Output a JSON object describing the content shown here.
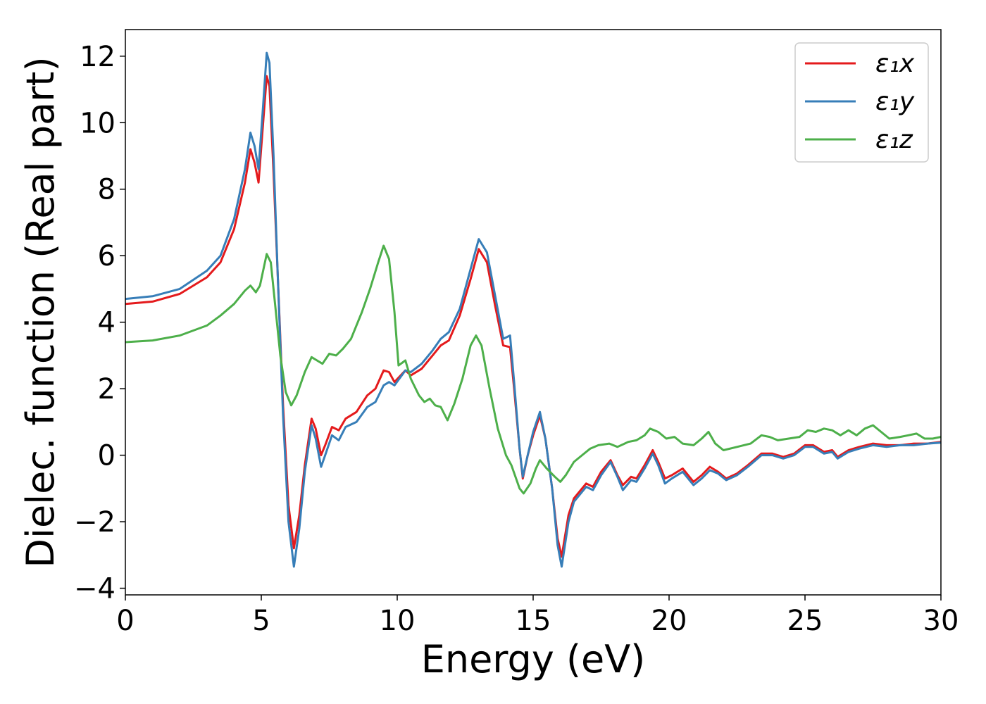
{
  "chart_data": {
    "type": "line",
    "xlabel": "Energy (eV)",
    "ylabel": "Dielec. function (Real part)",
    "xlim": [
      0,
      30
    ],
    "ylim": [
      -4.2,
      12.8
    ],
    "x_ticks": [
      0,
      5,
      10,
      15,
      20,
      25,
      30
    ],
    "y_ticks": [
      -4,
      -2,
      0,
      2,
      4,
      6,
      8,
      10,
      12
    ],
    "y_tick_labels": [
      "−4",
      "−2",
      "0",
      "2",
      "4",
      "6",
      "8",
      "10",
      "12"
    ],
    "grid": false,
    "legend_position": "top-right",
    "series": [
      {
        "name": "ε₁x",
        "color": "#e41a1c",
        "points": [
          [
            0,
            4.55
          ],
          [
            1,
            4.62
          ],
          [
            2,
            4.85
          ],
          [
            3,
            5.35
          ],
          [
            3.5,
            5.8
          ],
          [
            4,
            6.8
          ],
          [
            4.4,
            8.2
          ],
          [
            4.6,
            9.2
          ],
          [
            4.75,
            8.8
          ],
          [
            4.9,
            8.2
          ],
          [
            5.05,
            9.8
          ],
          [
            5.2,
            11.4
          ],
          [
            5.3,
            11.1
          ],
          [
            5.45,
            8.5
          ],
          [
            5.6,
            5.5
          ],
          [
            5.8,
            1.5
          ],
          [
            6.0,
            -1.5
          ],
          [
            6.2,
            -2.8
          ],
          [
            6.4,
            -1.8
          ],
          [
            6.6,
            -0.3
          ],
          [
            6.85,
            1.1
          ],
          [
            7.0,
            0.8
          ],
          [
            7.2,
            0.0
          ],
          [
            7.35,
            0.3
          ],
          [
            7.6,
            0.85
          ],
          [
            7.85,
            0.75
          ],
          [
            8.1,
            1.1
          ],
          [
            8.5,
            1.3
          ],
          [
            8.9,
            1.8
          ],
          [
            9.2,
            2.0
          ],
          [
            9.5,
            2.55
          ],
          [
            9.7,
            2.5
          ],
          [
            9.9,
            2.2
          ],
          [
            10.3,
            2.55
          ],
          [
            10.5,
            2.4
          ],
          [
            10.9,
            2.6
          ],
          [
            11.3,
            3.0
          ],
          [
            11.6,
            3.3
          ],
          [
            11.9,
            3.45
          ],
          [
            12.3,
            4.2
          ],
          [
            12.7,
            5.3
          ],
          [
            13.0,
            6.2
          ],
          [
            13.3,
            5.8
          ],
          [
            13.6,
            4.5
          ],
          [
            13.9,
            3.3
          ],
          [
            14.15,
            3.25
          ],
          [
            14.3,
            2.0
          ],
          [
            14.5,
            0.2
          ],
          [
            14.62,
            -0.7
          ],
          [
            14.8,
            0.0
          ],
          [
            15.0,
            0.6
          ],
          [
            15.25,
            1.2
          ],
          [
            15.45,
            0.5
          ],
          [
            15.7,
            -1.0
          ],
          [
            15.9,
            -2.5
          ],
          [
            16.05,
            -3.05
          ],
          [
            16.3,
            -1.8
          ],
          [
            16.5,
            -1.3
          ],
          [
            16.8,
            -1.0
          ],
          [
            16.95,
            -0.85
          ],
          [
            17.2,
            -0.95
          ],
          [
            17.5,
            -0.5
          ],
          [
            17.85,
            -0.15
          ],
          [
            18.1,
            -0.6
          ],
          [
            18.3,
            -0.9
          ],
          [
            18.6,
            -0.65
          ],
          [
            18.8,
            -0.7
          ],
          [
            19.1,
            -0.3
          ],
          [
            19.4,
            0.15
          ],
          [
            19.6,
            -0.2
          ],
          [
            19.85,
            -0.7
          ],
          [
            20.1,
            -0.6
          ],
          [
            20.5,
            -0.4
          ],
          [
            20.9,
            -0.8
          ],
          [
            21.2,
            -0.6
          ],
          [
            21.5,
            -0.35
          ],
          [
            21.8,
            -0.5
          ],
          [
            22.1,
            -0.7
          ],
          [
            22.5,
            -0.55
          ],
          [
            22.9,
            -0.3
          ],
          [
            23.4,
            0.05
          ],
          [
            23.8,
            0.05
          ],
          [
            24.2,
            -0.05
          ],
          [
            24.6,
            0.05
          ],
          [
            25.0,
            0.3
          ],
          [
            25.3,
            0.3
          ],
          [
            25.7,
            0.1
          ],
          [
            26.0,
            0.15
          ],
          [
            26.2,
            -0.05
          ],
          [
            26.6,
            0.15
          ],
          [
            27.0,
            0.25
          ],
          [
            27.5,
            0.35
          ],
          [
            28.0,
            0.3
          ],
          [
            28.5,
            0.3
          ],
          [
            29.0,
            0.35
          ],
          [
            29.5,
            0.35
          ],
          [
            30.0,
            0.4
          ]
        ]
      },
      {
        "name": "ε₁y",
        "color": "#377eb8",
        "points": [
          [
            0,
            4.7
          ],
          [
            1,
            4.78
          ],
          [
            2,
            5.0
          ],
          [
            3,
            5.55
          ],
          [
            3.5,
            6.0
          ],
          [
            4,
            7.1
          ],
          [
            4.4,
            8.6
          ],
          [
            4.6,
            9.7
          ],
          [
            4.75,
            9.3
          ],
          [
            4.9,
            8.6
          ],
          [
            5.05,
            10.3
          ],
          [
            5.2,
            12.1
          ],
          [
            5.3,
            11.8
          ],
          [
            5.45,
            9.0
          ],
          [
            5.6,
            5.5
          ],
          [
            5.8,
            1.2
          ],
          [
            6.0,
            -2.0
          ],
          [
            6.2,
            -3.35
          ],
          [
            6.4,
            -2.2
          ],
          [
            6.6,
            -0.5
          ],
          [
            6.85,
            0.9
          ],
          [
            7.0,
            0.5
          ],
          [
            7.2,
            -0.35
          ],
          [
            7.35,
            0.0
          ],
          [
            7.6,
            0.6
          ],
          [
            7.85,
            0.45
          ],
          [
            8.1,
            0.85
          ],
          [
            8.5,
            1.0
          ],
          [
            8.9,
            1.45
          ],
          [
            9.2,
            1.6
          ],
          [
            9.5,
            2.1
          ],
          [
            9.7,
            2.2
          ],
          [
            9.9,
            2.1
          ],
          [
            10.3,
            2.55
          ],
          [
            10.5,
            2.5
          ],
          [
            10.9,
            2.75
          ],
          [
            11.3,
            3.15
          ],
          [
            11.6,
            3.5
          ],
          [
            11.9,
            3.7
          ],
          [
            12.3,
            4.4
          ],
          [
            12.7,
            5.6
          ],
          [
            13.0,
            6.5
          ],
          [
            13.3,
            6.1
          ],
          [
            13.6,
            4.8
          ],
          [
            13.9,
            3.5
          ],
          [
            14.15,
            3.6
          ],
          [
            14.3,
            2.2
          ],
          [
            14.5,
            0.2
          ],
          [
            14.62,
            -0.65
          ],
          [
            14.8,
            0.0
          ],
          [
            15.0,
            0.7
          ],
          [
            15.25,
            1.3
          ],
          [
            15.45,
            0.5
          ],
          [
            15.7,
            -1.0
          ],
          [
            15.9,
            -2.7
          ],
          [
            16.05,
            -3.35
          ],
          [
            16.3,
            -2.0
          ],
          [
            16.5,
            -1.4
          ],
          [
            16.8,
            -1.1
          ],
          [
            16.95,
            -0.95
          ],
          [
            17.2,
            -1.05
          ],
          [
            17.5,
            -0.6
          ],
          [
            17.85,
            -0.2
          ],
          [
            18.1,
            -0.65
          ],
          [
            18.3,
            -1.05
          ],
          [
            18.6,
            -0.75
          ],
          [
            18.8,
            -0.8
          ],
          [
            19.1,
            -0.4
          ],
          [
            19.4,
            0.05
          ],
          [
            19.6,
            -0.3
          ],
          [
            19.85,
            -0.85
          ],
          [
            20.1,
            -0.7
          ],
          [
            20.5,
            -0.5
          ],
          [
            20.9,
            -0.9
          ],
          [
            21.2,
            -0.7
          ],
          [
            21.5,
            -0.45
          ],
          [
            21.8,
            -0.55
          ],
          [
            22.1,
            -0.75
          ],
          [
            22.5,
            -0.6
          ],
          [
            22.9,
            -0.35
          ],
          [
            23.4,
            0.0
          ],
          [
            23.8,
            0.0
          ],
          [
            24.2,
            -0.1
          ],
          [
            24.6,
            0.0
          ],
          [
            25.0,
            0.25
          ],
          [
            25.3,
            0.25
          ],
          [
            25.7,
            0.05
          ],
          [
            26.0,
            0.1
          ],
          [
            26.2,
            -0.1
          ],
          [
            26.6,
            0.1
          ],
          [
            27.0,
            0.2
          ],
          [
            27.5,
            0.3
          ],
          [
            28.0,
            0.25
          ],
          [
            28.5,
            0.3
          ],
          [
            29.0,
            0.3
          ],
          [
            29.5,
            0.35
          ],
          [
            30.0,
            0.38
          ]
        ]
      },
      {
        "name": "ε₁z",
        "color": "#4daf4a",
        "points": [
          [
            0,
            3.4
          ],
          [
            1,
            3.45
          ],
          [
            2,
            3.6
          ],
          [
            3,
            3.9
          ],
          [
            3.5,
            4.2
          ],
          [
            4,
            4.55
          ],
          [
            4.4,
            4.95
          ],
          [
            4.6,
            5.1
          ],
          [
            4.8,
            4.9
          ],
          [
            4.95,
            5.1
          ],
          [
            5.2,
            6.05
          ],
          [
            5.35,
            5.8
          ],
          [
            5.5,
            4.6
          ],
          [
            5.7,
            3.0
          ],
          [
            5.9,
            1.9
          ],
          [
            6.1,
            1.5
          ],
          [
            6.3,
            1.8
          ],
          [
            6.6,
            2.5
          ],
          [
            6.85,
            2.95
          ],
          [
            7.05,
            2.85
          ],
          [
            7.25,
            2.75
          ],
          [
            7.5,
            3.05
          ],
          [
            7.75,
            3.0
          ],
          [
            8.0,
            3.2
          ],
          [
            8.3,
            3.5
          ],
          [
            8.7,
            4.3
          ],
          [
            9.0,
            5.0
          ],
          [
            9.3,
            5.8
          ],
          [
            9.5,
            6.3
          ],
          [
            9.7,
            5.9
          ],
          [
            9.9,
            4.3
          ],
          [
            10.05,
            2.7
          ],
          [
            10.3,
            2.85
          ],
          [
            10.5,
            2.3
          ],
          [
            10.8,
            1.8
          ],
          [
            11.0,
            1.6
          ],
          [
            11.2,
            1.7
          ],
          [
            11.4,
            1.5
          ],
          [
            11.6,
            1.45
          ],
          [
            11.85,
            1.05
          ],
          [
            12.1,
            1.55
          ],
          [
            12.4,
            2.3
          ],
          [
            12.7,
            3.3
          ],
          [
            12.9,
            3.6
          ],
          [
            13.1,
            3.3
          ],
          [
            13.4,
            2.0
          ],
          [
            13.7,
            0.8
          ],
          [
            14.0,
            0.0
          ],
          [
            14.2,
            -0.3
          ],
          [
            14.5,
            -1.0
          ],
          [
            14.65,
            -1.15
          ],
          [
            14.9,
            -0.85
          ],
          [
            15.1,
            -0.4
          ],
          [
            15.25,
            -0.15
          ],
          [
            15.5,
            -0.4
          ],
          [
            15.8,
            -0.65
          ],
          [
            16.0,
            -0.8
          ],
          [
            16.2,
            -0.6
          ],
          [
            16.5,
            -0.2
          ],
          [
            16.8,
            0.0
          ],
          [
            17.1,
            0.2
          ],
          [
            17.4,
            0.3
          ],
          [
            17.8,
            0.35
          ],
          [
            18.1,
            0.25
          ],
          [
            18.5,
            0.4
          ],
          [
            18.8,
            0.45
          ],
          [
            19.1,
            0.6
          ],
          [
            19.3,
            0.8
          ],
          [
            19.6,
            0.7
          ],
          [
            19.9,
            0.5
          ],
          [
            20.2,
            0.55
          ],
          [
            20.5,
            0.35
          ],
          [
            20.9,
            0.3
          ],
          [
            21.2,
            0.5
          ],
          [
            21.45,
            0.7
          ],
          [
            21.7,
            0.35
          ],
          [
            22.0,
            0.15
          ],
          [
            22.5,
            0.25
          ],
          [
            23.0,
            0.35
          ],
          [
            23.4,
            0.6
          ],
          [
            23.7,
            0.55
          ],
          [
            24.0,
            0.45
          ],
          [
            24.4,
            0.5
          ],
          [
            24.8,
            0.55
          ],
          [
            25.1,
            0.75
          ],
          [
            25.4,
            0.7
          ],
          [
            25.7,
            0.8
          ],
          [
            26.0,
            0.75
          ],
          [
            26.3,
            0.6
          ],
          [
            26.6,
            0.75
          ],
          [
            26.9,
            0.6
          ],
          [
            27.2,
            0.8
          ],
          [
            27.5,
            0.9
          ],
          [
            27.8,
            0.7
          ],
          [
            28.1,
            0.5
          ],
          [
            28.5,
            0.55
          ],
          [
            28.8,
            0.6
          ],
          [
            29.1,
            0.65
          ],
          [
            29.4,
            0.5
          ],
          [
            29.7,
            0.5
          ],
          [
            30.0,
            0.55
          ]
        ]
      }
    ]
  }
}
